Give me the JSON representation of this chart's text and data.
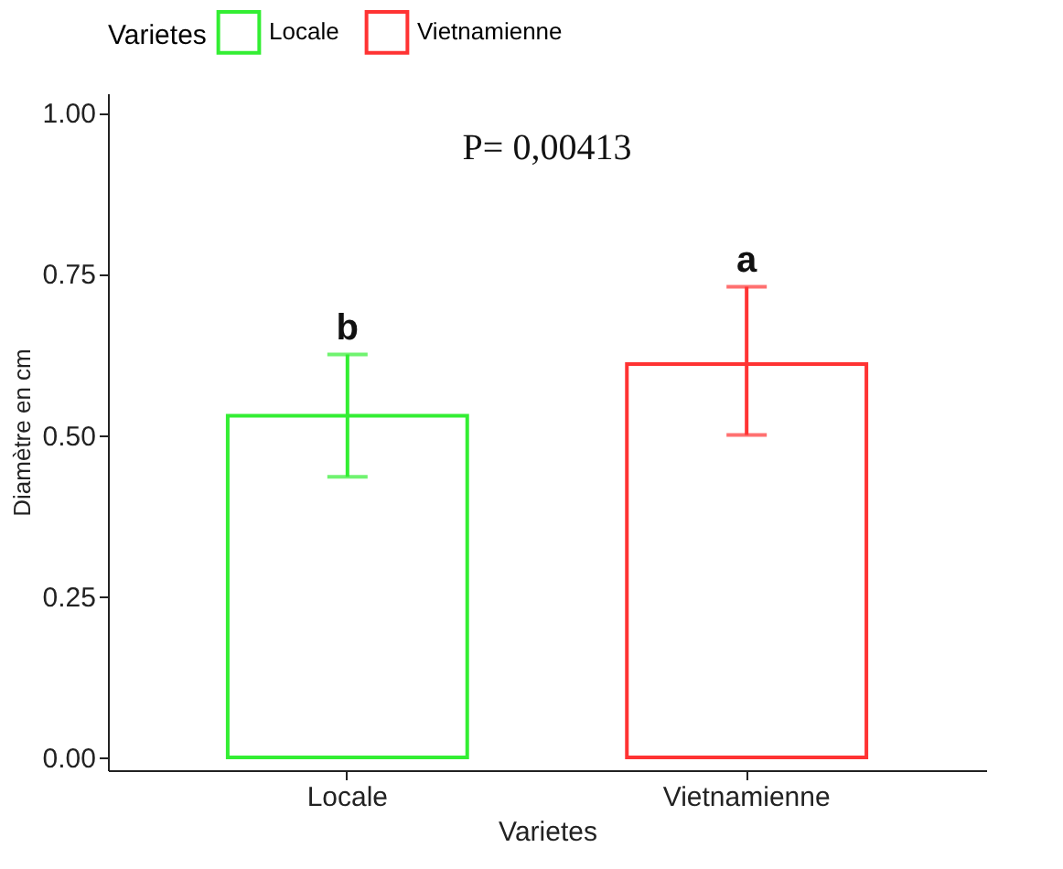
{
  "chart_data": {
    "type": "bar",
    "categories": [
      "Locale",
      "Vietnamienne"
    ],
    "series": [
      {
        "name": "Locale",
        "color": "#33ee33",
        "values": [
          0.53,
          null
        ],
        "errors": [
          [
            0.435,
            0.625
          ],
          null
        ]
      },
      {
        "name": "Vietnamienne",
        "color": "#ff3333",
        "values": [
          null,
          0.61
        ],
        "errors": [
          null,
          [
            0.5,
            0.73
          ]
        ]
      }
    ],
    "xlabel": "Varietes",
    "ylabel": "Diamètre en cm",
    "legend_title": "Varietes",
    "legend": "top",
    "ylim": [
      -0.02,
      1.03
    ],
    "yticks": [
      {
        "value": 0,
        "label": "0.00"
      },
      {
        "value": 0.25,
        "label": "0.25"
      },
      {
        "value": 0.5,
        "label": "0.50"
      },
      {
        "value": 0.75,
        "label": "0.75"
      },
      {
        "value": 1,
        "label": "1.00"
      }
    ],
    "grid": false,
    "annotations": [
      "P= 0,00413",
      {
        "text": "b",
        "x": "Locale",
        "y": 0.625
      },
      {
        "text": "a",
        "x": "Vietnamienne",
        "y": 0.73
      }
    ]
  }
}
